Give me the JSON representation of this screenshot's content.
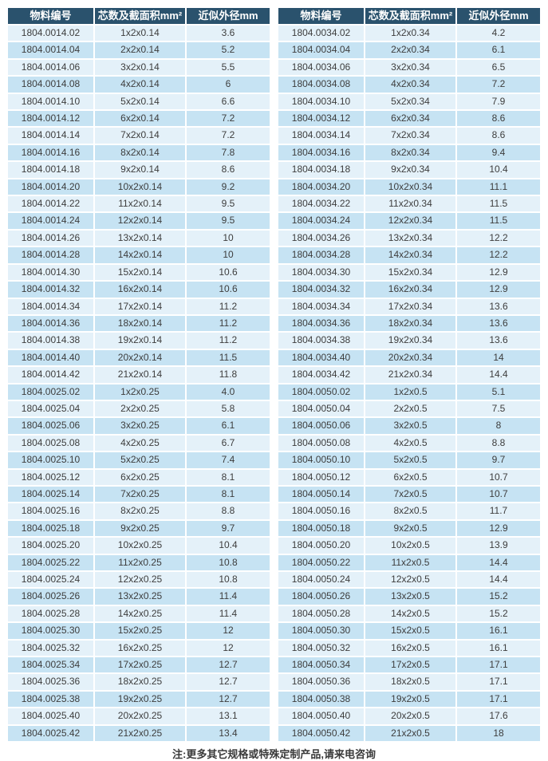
{
  "columns": [
    "物料编号",
    "芯数及截面积mm²",
    "近似外径mm"
  ],
  "note": "注:更多其它规格或特殊定制产品,请来电咨询",
  "colors": {
    "header_bg": "#2a526d",
    "row_light": "#e4f1f9",
    "row_dark": "#c6e3f3"
  },
  "tables": [
    {
      "rows": [
        [
          "1804.0014.02",
          "1x2x0.14",
          "3.6"
        ],
        [
          "1804.0014.04",
          "2x2x0.14",
          "5.2"
        ],
        [
          "1804.0014.06",
          "3x2x0.14",
          "5.5"
        ],
        [
          "1804.0014.08",
          "4x2x0.14",
          "6"
        ],
        [
          "1804.0014.10",
          "5x2x0.14",
          "6.6"
        ],
        [
          "1804.0014.12",
          "6x2x0.14",
          "7.2"
        ],
        [
          "1804.0014.14",
          "7x2x0.14",
          "7.2"
        ],
        [
          "1804.0014.16",
          "8x2x0.14",
          "7.8"
        ],
        [
          "1804.0014.18",
          "9x2x0.14",
          "8.6"
        ],
        [
          "1804.0014.20",
          "10x2x0.14",
          "9.2"
        ],
        [
          "1804.0014.22",
          "11x2x0.14",
          "9.5"
        ],
        [
          "1804.0014.24",
          "12x2x0.14",
          "9.5"
        ],
        [
          "1804.0014.26",
          "13x2x0.14",
          "10"
        ],
        [
          "1804.0014.28",
          "14x2x0.14",
          "10"
        ],
        [
          "1804.0014.30",
          "15x2x0.14",
          "10.6"
        ],
        [
          "1804.0014.32",
          "16x2x0.14",
          "10.6"
        ],
        [
          "1804.0014.34",
          "17x2x0.14",
          "11.2"
        ],
        [
          "1804.0014.36",
          "18x2x0.14",
          "11.2"
        ],
        [
          "1804.0014.38",
          "19x2x0.14",
          "11.2"
        ],
        [
          "1804.0014.40",
          "20x2x0.14",
          "11.5"
        ],
        [
          "1804.0014.42",
          "21x2x0.14",
          "11.8"
        ],
        [
          "1804.0025.02",
          "1x2x0.25",
          "4.0"
        ],
        [
          "1804.0025.04",
          "2x2x0.25",
          "5.8"
        ],
        [
          "1804.0025.06",
          "3x2x0.25",
          "6.1"
        ],
        [
          "1804.0025.08",
          "4x2x0.25",
          "6.7"
        ],
        [
          "1804.0025.10",
          "5x2x0.25",
          "7.4"
        ],
        [
          "1804.0025.12",
          "6x2x0.25",
          "8.1"
        ],
        [
          "1804.0025.14",
          "7x2x0.25",
          "8.1"
        ],
        [
          "1804.0025.16",
          "8x2x0.25",
          "8.8"
        ],
        [
          "1804.0025.18",
          "9x2x0.25",
          "9.7"
        ],
        [
          "1804.0025.20",
          "10x2x0.25",
          "10.4"
        ],
        [
          "1804.0025.22",
          "11x2x0.25",
          "10.8"
        ],
        [
          "1804.0025.24",
          "12x2x0.25",
          "10.8"
        ],
        [
          "1804.0025.26",
          "13x2x0.25",
          "11.4"
        ],
        [
          "1804.0025.28",
          "14x2x0.25",
          "11.4"
        ],
        [
          "1804.0025.30",
          "15x2x0.25",
          "12"
        ],
        [
          "1804.0025.32",
          "16x2x0.25",
          "12"
        ],
        [
          "1804.0025.34",
          "17x2x0.25",
          "12.7"
        ],
        [
          "1804.0025.36",
          "18x2x0.25",
          "12.7"
        ],
        [
          "1804.0025.38",
          "19x2x0.25",
          "12.7"
        ],
        [
          "1804.0025.40",
          "20x2x0.25",
          "13.1"
        ],
        [
          "1804.0025.42",
          "21x2x0.25",
          "13.4"
        ]
      ]
    },
    {
      "rows": [
        [
          "1804.0034.02",
          "1x2x0.34",
          "4.2"
        ],
        [
          "1804.0034.04",
          "2x2x0.34",
          "6.1"
        ],
        [
          "1804.0034.06",
          "3x2x0.34",
          "6.5"
        ],
        [
          "1804.0034.08",
          "4x2x0.34",
          "7.2"
        ],
        [
          "1804.0034.10",
          "5x2x0.34",
          "7.9"
        ],
        [
          "1804.0034.12",
          "6x2x0.34",
          "8.6"
        ],
        [
          "1804.0034.14",
          "7x2x0.34",
          "8.6"
        ],
        [
          "1804.0034.16",
          "8x2x0.34",
          "9.4"
        ],
        [
          "1804.0034.18",
          "9x2x0.34",
          "10.4"
        ],
        [
          "1804.0034.20",
          "10x2x0.34",
          "11.1"
        ],
        [
          "1804.0034.22",
          "11x2x0.34",
          "11.5"
        ],
        [
          "1804.0034.24",
          "12x2x0.34",
          "11.5"
        ],
        [
          "1804.0034.26",
          "13x2x0.34",
          "12.2"
        ],
        [
          "1804.0034.28",
          "14x2x0.34",
          "12.2"
        ],
        [
          "1804.0034.30",
          "15x2x0.34",
          "12.9"
        ],
        [
          "1804.0034.32",
          "16x2x0.34",
          "12.9"
        ],
        [
          "1804.0034.34",
          "17x2x0.34",
          "13.6"
        ],
        [
          "1804.0034.36",
          "18x2x0.34",
          "13.6"
        ],
        [
          "1804.0034.38",
          "19x2x0.34",
          "13.6"
        ],
        [
          "1804.0034.40",
          "20x2x0.34",
          "14"
        ],
        [
          "1804.0034.42",
          "21x2x0.34",
          "14.4"
        ],
        [
          "1804.0050.02",
          "1x2x0.5",
          "5.1"
        ],
        [
          "1804.0050.04",
          "2x2x0.5",
          "7.5"
        ],
        [
          "1804.0050.06",
          "3x2x0.5",
          "8"
        ],
        [
          "1804.0050.08",
          "4x2x0.5",
          "8.8"
        ],
        [
          "1804.0050.10",
          "5x2x0.5",
          "9.7"
        ],
        [
          "1804.0050.12",
          "6x2x0.5",
          "10.7"
        ],
        [
          "1804.0050.14",
          "7x2x0.5",
          "10.7"
        ],
        [
          "1804.0050.16",
          "8x2x0.5",
          "11.7"
        ],
        [
          "1804.0050.18",
          "9x2x0.5",
          "12.9"
        ],
        [
          "1804.0050.20",
          "10x2x0.5",
          "13.9"
        ],
        [
          "1804.0050.22",
          "11x2x0.5",
          "14.4"
        ],
        [
          "1804.0050.24",
          "12x2x0.5",
          "14.4"
        ],
        [
          "1804.0050.26",
          "13x2x0.5",
          "15.2"
        ],
        [
          "1804.0050.28",
          "14x2x0.5",
          "15.2"
        ],
        [
          "1804.0050.30",
          "15x2x0.5",
          "16.1"
        ],
        [
          "1804.0050.32",
          "16x2x0.5",
          "16.1"
        ],
        [
          "1804.0050.34",
          "17x2x0.5",
          "17.1"
        ],
        [
          "1804.0050.36",
          "18x2x0.5",
          "17.1"
        ],
        [
          "1804.0050.38",
          "19x2x0.5",
          "17.1"
        ],
        [
          "1804.0050.40",
          "20x2x0.5",
          "17.6"
        ],
        [
          "1804.0050.42",
          "21x2x0.5",
          "18"
        ]
      ]
    }
  ]
}
